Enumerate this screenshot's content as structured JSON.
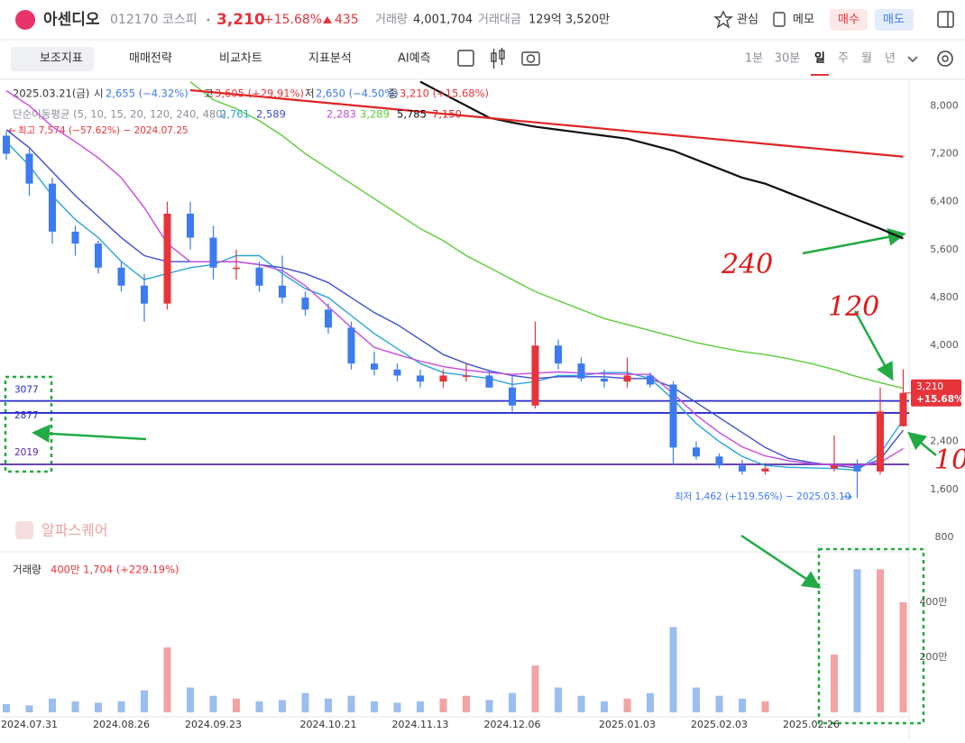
{
  "header": {
    "name": "아센디오",
    "code": "012170",
    "market": "코스피",
    "price": "3,210",
    "change_pct": "+15.68%",
    "change": "435",
    "volume_label": "거래량",
    "volume": "4,001,704",
    "amount_label": "거래대금",
    "amount": "129억 3,520만",
    "watch": "관심",
    "memo": "메모",
    "buy": "매수",
    "sell": "매도"
  },
  "toolbar": {
    "items": [
      "보조지표",
      "매매전략",
      "비교차트",
      "지표분석",
      "AI예측"
    ],
    "periods": [
      "1분",
      "30분",
      "일",
      "주",
      "월",
      "년"
    ]
  },
  "info": {
    "date": "2025.03.21(금)",
    "fields": [
      {
        "label": "시",
        "value": "2,655 (−4.32%)"
      },
      {
        "label": "고",
        "value": "3,605 (+29.91%)"
      },
      {
        "label": "저",
        "value": "2,650 (−4.50%)"
      },
      {
        "label": "종",
        "value": "3,210 (+15.68%)"
      }
    ],
    "ma_title": "단순이동평균 (5, 10, 15, 20, 120, 240, 480)"
  },
  "watermark": "알파스퀘어",
  "annotations": {
    "max": "최고 7,574 (−57.62%) − 2024.07.25",
    "min": "최저 1,462 (+119.56%) − 2025.03.10",
    "hand": [
      "240",
      "120",
      "10"
    ]
  },
  "chart_data": {
    "type": "candlestick",
    "categories": [
      null,
      "2024.07.31",
      null,
      null,
      null,
      "2024.08.26",
      null,
      null,
      null,
      "2024.09.23",
      null,
      null,
      null,
      null,
      "2024.10.21",
      null,
      null,
      null,
      "2024.11.13",
      null,
      null,
      null,
      "2024.12.06",
      null,
      null,
      null,
      null,
      "2025.01.03",
      null,
      null,
      null,
      "2025.02.03",
      null,
      null,
      null,
      "2025.02.26",
      null,
      null,
      null,
      null
    ],
    "open": [
      7500,
      7200,
      6700,
      5900,
      5700,
      5300,
      5000,
      4700,
      6200,
      5800,
      5300,
      5300,
      5000,
      4800,
      4600,
      4300,
      3700,
      3600,
      3500,
      3400,
      3500,
      3500,
      3300,
      3000,
      4000,
      3700,
      3450,
      3400,
      3500,
      3350,
      2300,
      2150,
      2000,
      1900,
      null,
      null,
      1950,
      2000,
      1900,
      2655
    ],
    "high": [
      7574,
      7300,
      6800,
      6000,
      5750,
      5400,
      5200,
      6400,
      6400,
      6000,
      5600,
      5400,
      5500,
      4900,
      4700,
      4400,
      3900,
      3700,
      3600,
      3600,
      3700,
      3600,
      3500,
      4400,
      4100,
      3800,
      3600,
      3800,
      3550,
      3400,
      2400,
      2200,
      2100,
      2000,
      null,
      null,
      2500,
      2100,
      3300,
      3605
    ],
    "low": [
      7100,
      6500,
      5700,
      5500,
      5200,
      4900,
      4400,
      4600,
      5600,
      5100,
      5100,
      4900,
      4700,
      4500,
      4200,
      3600,
      3500,
      3400,
      3300,
      3300,
      3400,
      3300,
      2900,
      2950,
      3600,
      3400,
      3300,
      3300,
      3300,
      2000,
      2100,
      1950,
      1850,
      1850,
      null,
      null,
      1900,
      1462,
      1850,
      2650
    ],
    "close": [
      7200,
      6700,
      5900,
      5700,
      5300,
      5000,
      4700,
      6200,
      5800,
      5300,
      5300,
      5000,
      4800,
      4600,
      4300,
      3700,
      3600,
      3500,
      3400,
      3500,
      3500,
      3300,
      3000,
      4000,
      3700,
      3450,
      3400,
      3500,
      3350,
      2300,
      2150,
      2000,
      1900,
      1950,
      null,
      null,
      2000,
      1900,
      2900,
      3210
    ],
    "up_color": "#e8333a",
    "down_color": "#3d7bf0",
    "ylim": [
      665,
      8440
    ],
    "yticks": [
      {
        "value": 800,
        "label": "800"
      },
      {
        "value": 1600,
        "label": "1,600"
      },
      {
        "value": 2400,
        "label": "2,400"
      },
      {
        "value": 3200,
        "label": "3,200"
      },
      {
        "value": 4000,
        "label": "4,000"
      },
      {
        "value": 4800,
        "label": "4,800"
      },
      {
        "value": 5600,
        "label": "5,600"
      },
      {
        "value": 6400,
        "label": "6,400"
      },
      {
        "value": 7200,
        "label": "7,200"
      },
      {
        "value": 8000,
        "label": "8,000"
      }
    ],
    "series": [
      {
        "color": "#2aa5dc",
        "legend_value": "2,761",
        "values": [
          7400,
          7000,
          6500,
          6100,
          5800,
          5400,
          5100,
          5200,
          5300,
          5350,
          5500,
          5500,
          5200,
          4950,
          4800,
          4500,
          4200,
          3950,
          3700,
          3550,
          3500,
          3450,
          3350,
          3400,
          3500,
          3500,
          3550,
          3550,
          3450,
          3100,
          2700,
          2400,
          2150,
          2000,
          1970,
          1960,
          1950,
          1920,
          2200,
          2761
        ]
      },
      {
        "color": "#3f4fd0",
        "legend_value": "2,589",
        "values": [
          7600,
          7300,
          6900,
          6500,
          6150,
          5800,
          5500,
          5400,
          5400,
          5400,
          5400,
          5350,
          5300,
          5200,
          5050,
          4800,
          4550,
          4350,
          4100,
          3850,
          3700,
          3580,
          3500,
          3450,
          3480,
          3480,
          3480,
          3450,
          3450,
          3300,
          3050,
          2800,
          2550,
          2300,
          2120,
          2050,
          2000,
          1960,
          2100,
          2589
        ]
      },
      {
        "color": "#c84be0",
        "legend_value": "2,283",
        "values": [
          8250,
          8000,
          7650,
          7400,
          7130,
          6800,
          6300,
          5700,
          5400,
          5400,
          5400,
          5350,
          5250,
          5000,
          4650,
          4300,
          3970,
          3850,
          3740,
          3650,
          3590,
          3550,
          3520,
          3540,
          3560,
          3540,
          3530,
          3520,
          3520,
          3200,
          2840,
          2550,
          2310,
          2160,
          2080,
          2030,
          2010,
          2000,
          2050,
          2283
        ]
      },
      {
        "color": "#5ccc3a",
        "legend_value": "3,289",
        "values": [
          null,
          null,
          null,
          null,
          null,
          null,
          null,
          null,
          8400,
          8100,
          7950,
          7750,
          7500,
          7200,
          6950,
          6700,
          6450,
          6200,
          5950,
          5750,
          5500,
          5300,
          5100,
          4900,
          4750,
          4600,
          4450,
          4350,
          4250,
          4150,
          4050,
          3970,
          3900,
          3850,
          3780,
          3700,
          3600,
          3480,
          3380,
          3289
        ]
      },
      {
        "color": "#111111",
        "legend_value": "5,785",
        "values": [
          null,
          null,
          null,
          null,
          null,
          null,
          null,
          null,
          null,
          null,
          null,
          null,
          null,
          null,
          null,
          null,
          null,
          null,
          8400,
          8200,
          8000,
          7800,
          7720,
          7650,
          7600,
          7550,
          7500,
          7450,
          7350,
          7250,
          7100,
          6950,
          6800,
          6700,
          6550,
          6400,
          6250,
          6100,
          5950,
          5785
        ]
      },
      {
        "color": "#e02424",
        "legend_value": "7,150",
        "values": [
          null,
          null,
          null,
          null,
          null,
          null,
          null,
          null,
          8260,
          8224,
          8188,
          8153,
          8117,
          8081,
          8045,
          8010,
          7974,
          7938,
          7902,
          7866,
          7831,
          7795,
          7759,
          7723,
          7687,
          7652,
          7616,
          7580,
          7544,
          7508,
          7473,
          7437,
          7401,
          7365,
          7329,
          7294,
          7258,
          7222,
          7186,
          7150
        ]
      }
    ],
    "hlines": [
      {
        "value": 3077,
        "color": "#2a2ad0"
      },
      {
        "value": 2877,
        "color": "#2a2ad0"
      },
      {
        "value": 2019,
        "color": "#5a2aa8"
      }
    ],
    "price_tag": {
      "value": "3,210",
      "change": "+15.68%",
      "color": "#e8333a"
    },
    "volume": {
      "title": "거래량",
      "info": "400만 1,704 (+229.19%)",
      "values": [
        300000,
        250000,
        500000,
        400000,
        350000,
        400000,
        800000,
        2360000,
        900000,
        600000,
        500000,
        400000,
        450000,
        700000,
        500000,
        600000,
        400000,
        350000,
        400000,
        500000,
        600000,
        450000,
        700000,
        1700000,
        900000,
        600000,
        400000,
        500000,
        700000,
        3100000,
        900000,
        600000,
        500000,
        400000,
        null,
        null,
        2100000,
        5200000,
        5200000,
        4001704
      ],
      "up_color": "#f2a3a3",
      "down_color": "#9cbdf0",
      "ylim": [
        0,
        5570000
      ],
      "yticks": [
        {
          "value": 2000000,
          "label": "200만"
        },
        {
          "value": 4000000,
          "label": "400만"
        }
      ]
    }
  }
}
